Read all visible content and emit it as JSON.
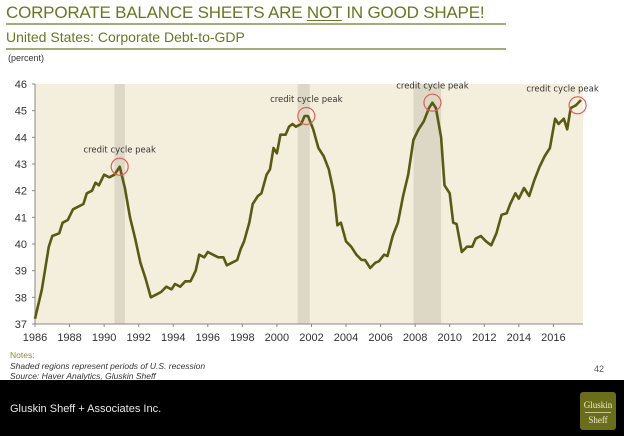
{
  "page": {
    "title_pre": "CORPORATE BALANCE SHEETS ARE ",
    "title_emph": "NOT",
    "title_post": " IN GOOD SHAPE!",
    "subtitle": "United States: Corporate Debt-to-GDP",
    "unit_label": "(percent)",
    "notes_label": "Notes:",
    "note_1": "Shaded regions represent periods of U.S. recession",
    "note_2": "Source: Haver Analytics, Gluskin Sheff",
    "page_number": "42",
    "footer_text": "Gluskin Sheff + Associates Inc.",
    "logo_line1": "Gluskin",
    "logo_line2": "Sheff"
  },
  "colors": {
    "title": "#6b7623",
    "line": "#5a5a14",
    "plot_bg": "#f4eedd",
    "recession": "#ddd8c6",
    "peak_circle": "#e0605a",
    "axis": "#888888"
  },
  "chart_data": {
    "type": "line",
    "title": "United States: Corporate Debt-to-GDP",
    "xlabel": "",
    "ylabel": "(percent)",
    "xlim": [
      1986,
      2017.8
    ],
    "ylim": [
      37,
      46
    ],
    "x_ticks": [
      1986,
      1988,
      1990,
      1992,
      1994,
      1996,
      1998,
      2000,
      2002,
      2004,
      2006,
      2008,
      2010,
      2012,
      2014,
      2016
    ],
    "y_ticks": [
      37,
      38,
      39,
      40,
      41,
      42,
      43,
      44,
      45,
      46
    ],
    "grid": false,
    "legend": "none",
    "recessions": [
      [
        1990.6,
        1991.2
      ],
      [
        2001.2,
        2001.9
      ],
      [
        2007.9,
        2009.5
      ]
    ],
    "annotations": [
      {
        "text": "credit cycle peak",
        "x": 1990.9,
        "y": 42.9
      },
      {
        "text": "credit cycle peak",
        "x": 2001.7,
        "y": 44.8
      },
      {
        "text": "credit cycle peak",
        "x": 2009.0,
        "y": 45.3
      },
      {
        "text": "credit cycle peak",
        "x": 2017.4,
        "y": 45.2
      }
    ],
    "series": [
      {
        "name": "Corporate Debt-to-GDP",
        "x": [
          1986.0,
          1986.4,
          1986.8,
          1987.0,
          1987.4,
          1987.6,
          1987.9,
          1988.2,
          1988.5,
          1988.8,
          1989.0,
          1989.3,
          1989.5,
          1989.7,
          1990.0,
          1990.3,
          1990.6,
          1990.9,
          1991.2,
          1991.5,
          1991.8,
          1992.1,
          1992.4,
          1992.7,
          1993.0,
          1993.3,
          1993.6,
          1993.9,
          1994.1,
          1994.4,
          1994.7,
          1995.0,
          1995.3,
          1995.5,
          1995.8,
          1996.0,
          1996.3,
          1996.6,
          1996.9,
          1997.1,
          1997.4,
          1997.7,
          1997.9,
          1998.1,
          1998.4,
          1998.6,
          1998.9,
          1999.1,
          1999.4,
          1999.6,
          1999.8,
          2000.0,
          2000.2,
          2000.5,
          2000.7,
          2000.9,
          2001.1,
          2001.4,
          2001.6,
          2001.8,
          2002.1,
          2002.4,
          2002.7,
          2003.0,
          2003.3,
          2003.5,
          2003.7,
          2004.0,
          2004.3,
          2004.6,
          2004.9,
          2005.1,
          2005.4,
          2005.7,
          2005.9,
          2006.2,
          2006.4,
          2006.7,
          2007.0,
          2007.3,
          2007.6,
          2007.9,
          2008.2,
          2008.5,
          2008.8,
          2009.0,
          2009.2,
          2009.5,
          2009.7,
          2010.0,
          2010.2,
          2010.4,
          2010.7,
          2011.0,
          2011.3,
          2011.5,
          2011.8,
          2012.1,
          2012.4,
          2012.7,
          2013.0,
          2013.3,
          2013.5,
          2013.8,
          2014.0,
          2014.3,
          2014.6,
          2014.9,
          2015.2,
          2015.5,
          2015.8,
          2016.1,
          2016.3,
          2016.6,
          2016.8,
          2017.0,
          2017.3,
          2017.6
        ],
        "values": [
          37.2,
          38.3,
          39.9,
          40.3,
          40.4,
          40.8,
          40.9,
          41.3,
          41.4,
          41.5,
          41.9,
          42.0,
          42.3,
          42.2,
          42.6,
          42.5,
          42.6,
          42.9,
          42.1,
          41.0,
          40.2,
          39.3,
          38.7,
          38.0,
          38.1,
          38.2,
          38.4,
          38.3,
          38.5,
          38.4,
          38.6,
          38.6,
          39.0,
          39.6,
          39.5,
          39.7,
          39.6,
          39.5,
          39.5,
          39.2,
          39.3,
          39.4,
          39.8,
          40.1,
          40.8,
          41.5,
          41.8,
          41.9,
          42.6,
          42.8,
          43.6,
          43.4,
          44.1,
          44.1,
          44.4,
          44.5,
          44.4,
          44.5,
          44.8,
          44.8,
          44.3,
          43.6,
          43.3,
          42.8,
          41.9,
          40.7,
          40.8,
          40.1,
          39.9,
          39.6,
          39.4,
          39.4,
          39.1,
          39.3,
          39.35,
          39.6,
          39.55,
          40.3,
          40.8,
          41.8,
          42.6,
          43.9,
          44.3,
          44.6,
          45.1,
          45.3,
          45.1,
          44.0,
          42.2,
          41.9,
          40.8,
          40.75,
          39.7,
          39.9,
          39.9,
          40.2,
          40.3,
          40.1,
          39.95,
          40.4,
          41.1,
          41.15,
          41.5,
          41.9,
          41.7,
          42.1,
          41.8,
          42.4,
          42.9,
          43.3,
          43.6,
          44.7,
          44.5,
          44.7,
          44.3,
          45.1,
          45.2,
          45.4
        ]
      }
    ]
  }
}
